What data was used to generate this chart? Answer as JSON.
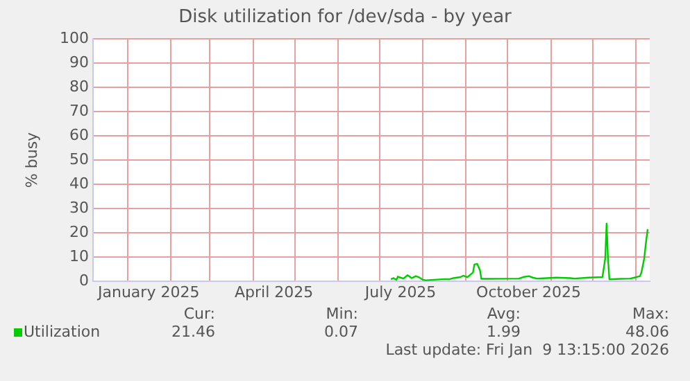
{
  "chart_data": {
    "type": "line",
    "title": "Disk utilization for /dev/sda - by year",
    "ylabel": "% busy",
    "xlim": [
      "2024-12-07",
      "2026-01-11"
    ],
    "xticks": [
      {
        "value": "2025-01-01",
        "label": null
      },
      {
        "value": "2025-01-16",
        "label": "January 2025"
      },
      {
        "value": "2025-02-01",
        "label": null
      },
      {
        "value": "2025-03-01",
        "label": null
      },
      {
        "value": "2025-04-01",
        "label": null
      },
      {
        "value": "2025-04-16",
        "label": "April 2025"
      },
      {
        "value": "2025-05-01",
        "label": null
      },
      {
        "value": "2025-06-01",
        "label": null
      },
      {
        "value": "2025-07-01",
        "label": null
      },
      {
        "value": "2025-07-16",
        "label": "July 2025"
      },
      {
        "value": "2025-08-01",
        "label": null
      },
      {
        "value": "2025-09-01",
        "label": null
      },
      {
        "value": "2025-10-01",
        "label": null
      },
      {
        "value": "2025-10-16",
        "label": "October 2025"
      },
      {
        "value": "2025-11-01",
        "label": null
      },
      {
        "value": "2025-12-01",
        "label": null
      },
      {
        "value": "2026-01-01",
        "label": null
      }
    ],
    "ylim": [
      0,
      100
    ],
    "yticks": [
      0,
      10,
      20,
      30,
      40,
      50,
      60,
      70,
      80,
      90,
      100
    ],
    "grid": true,
    "legend": "bottom left",
    "marker": "none",
    "line_style": "solid",
    "x": [
      "2025-07-09",
      "2025-07-11",
      "2025-07-13",
      "2025-07-14",
      "2025-07-16",
      "2025-07-18",
      "2025-07-21",
      "2025-07-24",
      "2025-07-27",
      "2025-07-29",
      "2025-08-01",
      "2025-08-03",
      "2025-08-17",
      "2025-08-20",
      "2025-08-23",
      "2025-08-28",
      "2025-08-30",
      "2025-09-02",
      "2025-09-06",
      "2025-09-07",
      "2025-09-09",
      "2025-09-11",
      "2025-09-12",
      "2025-09-16",
      "2025-10-09",
      "2025-10-12",
      "2025-10-16",
      "2025-10-19",
      "2025-10-22",
      "2025-10-29",
      "2025-11-05",
      "2025-11-15",
      "2025-11-18",
      "2025-11-28",
      "2025-12-08",
      "2025-12-10",
      "2025-12-11",
      "2025-12-12",
      "2025-12-13",
      "2025-12-21",
      "2025-12-28",
      "2025-12-31",
      "2026-01-04",
      "2026-01-05",
      "2026-01-07",
      "2026-01-08T12:00",
      "2026-01-09T13:15"
    ],
    "series": [
      {
        "name": "Utilization",
        "color": "#00cc00",
        "values": [
          0.8,
          1.3,
          0.6,
          1.9,
          1.5,
          1.1,
          2.5,
          1.3,
          2.1,
          1.7,
          0.6,
          0.4,
          0.9,
          0.8,
          1.3,
          1.7,
          2.3,
          1.7,
          3.6,
          6.9,
          7.2,
          4.6,
          1.0,
          1.0,
          1.1,
          1.7,
          2.1,
          1.5,
          1.1,
          1.3,
          1.5,
          1.3,
          1.1,
          1.5,
          1.7,
          9.3,
          23.8,
          9.3,
          0.8,
          1.0,
          1.1,
          1.5,
          2.1,
          3.6,
          9.3,
          17,
          21.5
        ]
      }
    ],
    "annotations": [
      "Cur:",
      "Min:",
      "Avg:",
      "Max:",
      "21.46",
      "0.07",
      "1.99",
      "48.06",
      "Last update: Fri Jan  9 13:15:00 2026"
    ]
  }
}
